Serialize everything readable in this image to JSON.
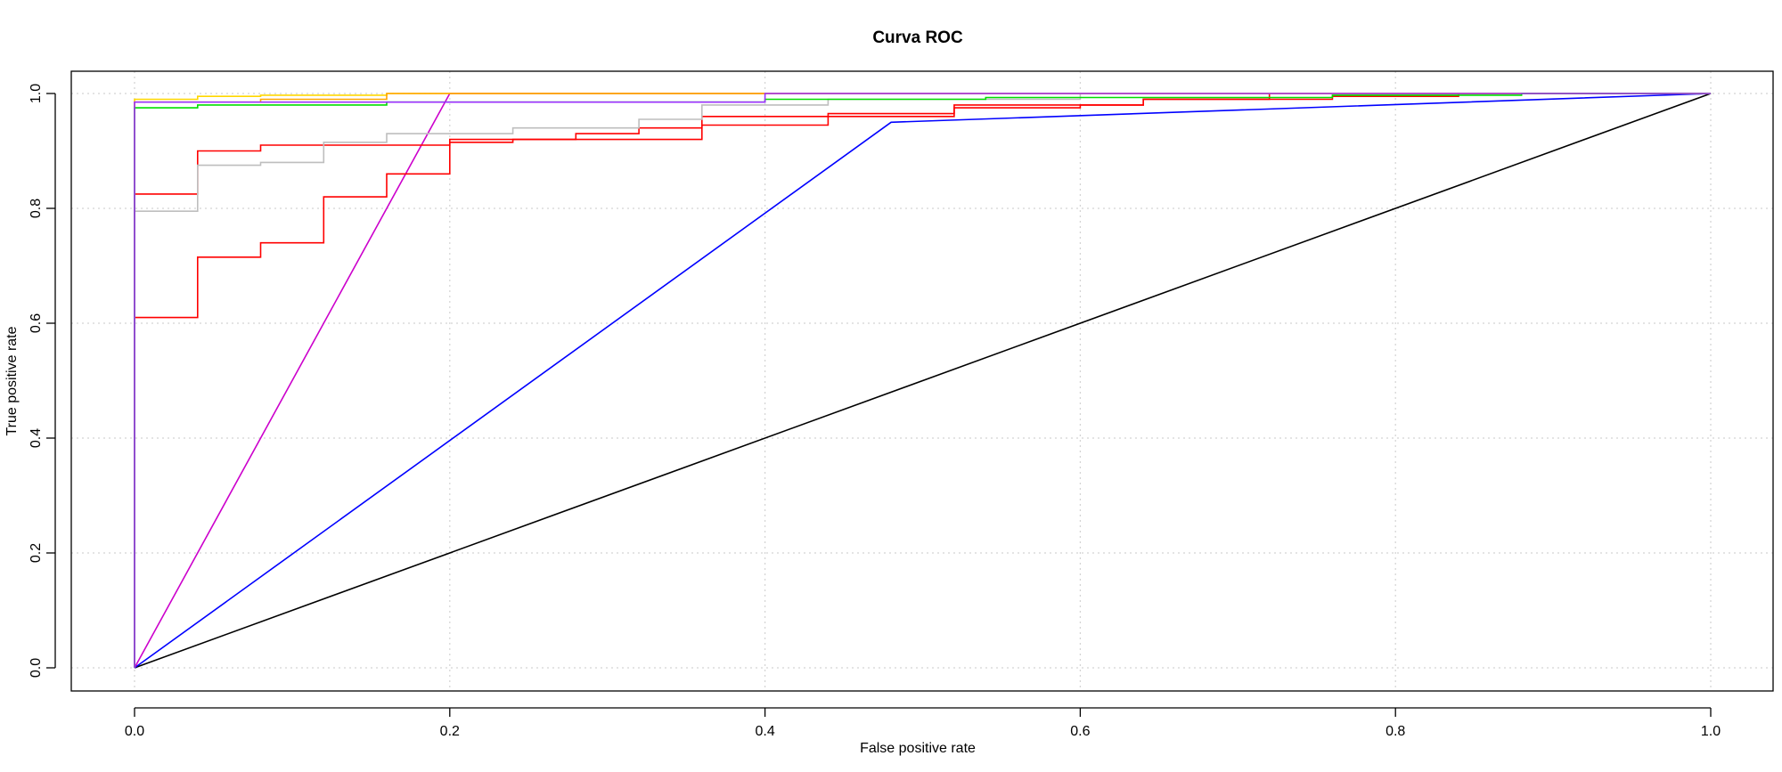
{
  "chart_data": {
    "type": "line",
    "title": "Curva ROC",
    "xlabel": "False positive rate",
    "ylabel": "True positive rate",
    "xlim": [
      0,
      1
    ],
    "ylim": [
      0,
      1
    ],
    "xticks": [
      "0.0",
      "0.2",
      "0.4",
      "0.6",
      "0.8",
      "1.0"
    ],
    "yticks": [
      "0.0",
      "0.2",
      "0.4",
      "0.6",
      "0.8",
      "1.0"
    ],
    "grid": true,
    "series": [
      {
        "color": "#000000",
        "x": [
          0,
          1
        ],
        "y": [
          0,
          1
        ]
      },
      {
        "color": "#0000ff",
        "x": [
          0,
          0.48,
          1
        ],
        "y": [
          0,
          0.95,
          1
        ]
      },
      {
        "color": "#cc00cc",
        "x": [
          0,
          0.2,
          1
        ],
        "y": [
          0,
          1,
          1
        ]
      },
      {
        "color": "#ff0000",
        "x": [
          0,
          0,
          0.04,
          0.04,
          0.08,
          0.08,
          0.12,
          0.12,
          0.16,
          0.16,
          0.2,
          0.2,
          0.24,
          0.24,
          0.28,
          0.28,
          0.32,
          0.32,
          0.36,
          0.36,
          0.44,
          0.44,
          0.52,
          0.52,
          0.6,
          0.6,
          0.64,
          0.64,
          0.76,
          0.76,
          0.84,
          0.84,
          1
        ],
        "y": [
          0,
          0.61,
          0.61,
          0.715,
          0.715,
          0.74,
          0.74,
          0.82,
          0.82,
          0.86,
          0.86,
          0.915,
          0.915,
          0.92,
          0.92,
          0.93,
          0.93,
          0.94,
          0.94,
          0.945,
          0.945,
          0.965,
          0.965,
          0.975,
          0.975,
          0.98,
          0.98,
          0.99,
          0.99,
          0.995,
          0.995,
          1,
          1
        ]
      },
      {
        "color": "#ff0000",
        "x": [
          0,
          0,
          0.04,
          0.04,
          0.08,
          0.08,
          0.2,
          0.2,
          0.36,
          0.36,
          0.52,
          0.52,
          0.64,
          0.64,
          0.72,
          0.72,
          1
        ],
        "y": [
          0,
          0.825,
          0.825,
          0.9,
          0.9,
          0.91,
          0.91,
          0.92,
          0.92,
          0.96,
          0.96,
          0.98,
          0.98,
          0.99,
          0.99,
          1,
          1
        ]
      },
      {
        "color": "#bebebe",
        "x": [
          0,
          0,
          0.04,
          0.04,
          0.08,
          0.08,
          0.12,
          0.12,
          0.16,
          0.16,
          0.24,
          0.24,
          0.32,
          0.32,
          0.36,
          0.36,
          0.44,
          0.44,
          0.6,
          0.6,
          1
        ],
        "y": [
          0,
          0.795,
          0.795,
          0.875,
          0.875,
          0.88,
          0.88,
          0.915,
          0.915,
          0.93,
          0.93,
          0.94,
          0.94,
          0.955,
          0.955,
          0.98,
          0.98,
          0.99,
          0.99,
          1,
          1
        ]
      },
      {
        "color": "#ffd700",
        "x": [
          0,
          0,
          0.04,
          0.04,
          0.08,
          0.08,
          0.16,
          0.16,
          1
        ],
        "y": [
          0,
          0.99,
          0.99,
          0.995,
          0.995,
          0.997,
          0.997,
          1,
          1
        ]
      },
      {
        "color": "#ffa500",
        "x": [
          0,
          0,
          0.08,
          0.08,
          0.16,
          0.16,
          1
        ],
        "y": [
          0,
          0.985,
          0.985,
          0.99,
          0.99,
          1,
          1
        ]
      },
      {
        "color": "#00dd00",
        "x": [
          0,
          0,
          0.04,
          0.04,
          0.16,
          0.16,
          0.4,
          0.4,
          0.54,
          0.54,
          0.76,
          0.76,
          0.88,
          0.88,
          1
        ],
        "y": [
          0,
          0.975,
          0.975,
          0.98,
          0.98,
          0.985,
          0.985,
          0.99,
          0.99,
          0.993,
          0.993,
          0.997,
          0.997,
          1,
          1
        ]
      },
      {
        "color": "#9b30ff",
        "x": [
          0,
          0,
          0.4,
          0.4,
          1
        ],
        "y": [
          0,
          0.985,
          0.985,
          1,
          1
        ]
      }
    ]
  }
}
